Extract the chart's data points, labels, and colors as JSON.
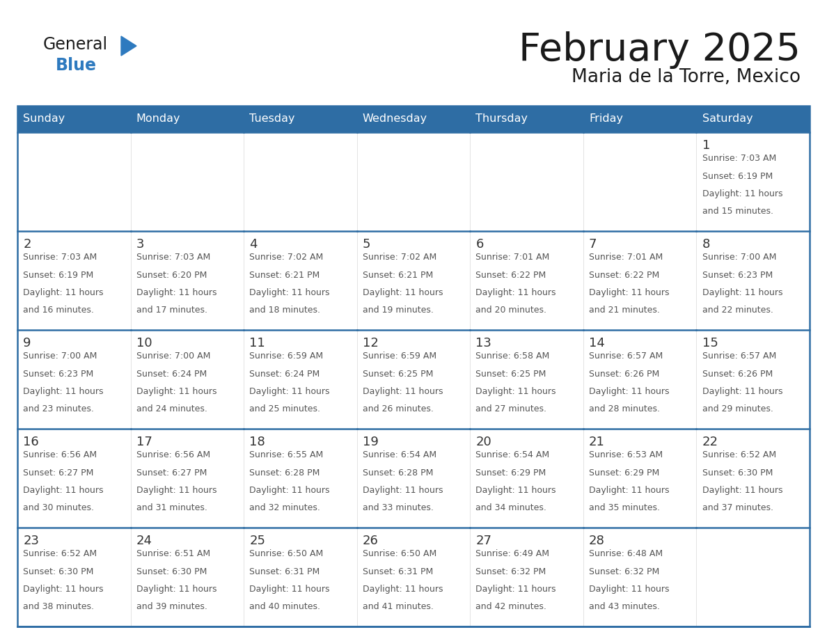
{
  "title": "February 2025",
  "subtitle": "Maria de la Torre, Mexico",
  "days_of_week": [
    "Sunday",
    "Monday",
    "Tuesday",
    "Wednesday",
    "Thursday",
    "Friday",
    "Saturday"
  ],
  "header_bg": "#2E6DA4",
  "header_text": "#FFFFFF",
  "cell_bg": "#FFFFFF",
  "cell_bg_alt": "#F5F5F5",
  "border_color": "#2E6DA4",
  "border_light": "#CCCCCC",
  "day_number_color": "#333333",
  "info_text_color": "#555555",
  "title_color": "#1a1a1a",
  "logo_general_color": "#1a1a1a",
  "logo_blue_color": "#2E7ABF",
  "calendar_data": [
    [
      null,
      null,
      null,
      null,
      null,
      null,
      {
        "day": 1,
        "sunrise": "7:03 AM",
        "sunset": "6:19 PM",
        "daylight": "11 hours and 15 minutes."
      }
    ],
    [
      {
        "day": 2,
        "sunrise": "7:03 AM",
        "sunset": "6:19 PM",
        "daylight": "11 hours and 16 minutes."
      },
      {
        "day": 3,
        "sunrise": "7:03 AM",
        "sunset": "6:20 PM",
        "daylight": "11 hours and 17 minutes."
      },
      {
        "day": 4,
        "sunrise": "7:02 AM",
        "sunset": "6:21 PM",
        "daylight": "11 hours and 18 minutes."
      },
      {
        "day": 5,
        "sunrise": "7:02 AM",
        "sunset": "6:21 PM",
        "daylight": "11 hours and 19 minutes."
      },
      {
        "day": 6,
        "sunrise": "7:01 AM",
        "sunset": "6:22 PM",
        "daylight": "11 hours and 20 minutes."
      },
      {
        "day": 7,
        "sunrise": "7:01 AM",
        "sunset": "6:22 PM",
        "daylight": "11 hours and 21 minutes."
      },
      {
        "day": 8,
        "sunrise": "7:00 AM",
        "sunset": "6:23 PM",
        "daylight": "11 hours and 22 minutes."
      }
    ],
    [
      {
        "day": 9,
        "sunrise": "7:00 AM",
        "sunset": "6:23 PM",
        "daylight": "11 hours and 23 minutes."
      },
      {
        "day": 10,
        "sunrise": "7:00 AM",
        "sunset": "6:24 PM",
        "daylight": "11 hours and 24 minutes."
      },
      {
        "day": 11,
        "sunrise": "6:59 AM",
        "sunset": "6:24 PM",
        "daylight": "11 hours and 25 minutes."
      },
      {
        "day": 12,
        "sunrise": "6:59 AM",
        "sunset": "6:25 PM",
        "daylight": "11 hours and 26 minutes."
      },
      {
        "day": 13,
        "sunrise": "6:58 AM",
        "sunset": "6:25 PM",
        "daylight": "11 hours and 27 minutes."
      },
      {
        "day": 14,
        "sunrise": "6:57 AM",
        "sunset": "6:26 PM",
        "daylight": "11 hours and 28 minutes."
      },
      {
        "day": 15,
        "sunrise": "6:57 AM",
        "sunset": "6:26 PM",
        "daylight": "11 hours and 29 minutes."
      }
    ],
    [
      {
        "day": 16,
        "sunrise": "6:56 AM",
        "sunset": "6:27 PM",
        "daylight": "11 hours and 30 minutes."
      },
      {
        "day": 17,
        "sunrise": "6:56 AM",
        "sunset": "6:27 PM",
        "daylight": "11 hours and 31 minutes."
      },
      {
        "day": 18,
        "sunrise": "6:55 AM",
        "sunset": "6:28 PM",
        "daylight": "11 hours and 32 minutes."
      },
      {
        "day": 19,
        "sunrise": "6:54 AM",
        "sunset": "6:28 PM",
        "daylight": "11 hours and 33 minutes."
      },
      {
        "day": 20,
        "sunrise": "6:54 AM",
        "sunset": "6:29 PM",
        "daylight": "11 hours and 34 minutes."
      },
      {
        "day": 21,
        "sunrise": "6:53 AM",
        "sunset": "6:29 PM",
        "daylight": "11 hours and 35 minutes."
      },
      {
        "day": 22,
        "sunrise": "6:52 AM",
        "sunset": "6:30 PM",
        "daylight": "11 hours and 37 minutes."
      }
    ],
    [
      {
        "day": 23,
        "sunrise": "6:52 AM",
        "sunset": "6:30 PM",
        "daylight": "11 hours and 38 minutes."
      },
      {
        "day": 24,
        "sunrise": "6:51 AM",
        "sunset": "6:30 PM",
        "daylight": "11 hours and 39 minutes."
      },
      {
        "day": 25,
        "sunrise": "6:50 AM",
        "sunset": "6:31 PM",
        "daylight": "11 hours and 40 minutes."
      },
      {
        "day": 26,
        "sunrise": "6:50 AM",
        "sunset": "6:31 PM",
        "daylight": "11 hours and 41 minutes."
      },
      {
        "day": 27,
        "sunrise": "6:49 AM",
        "sunset": "6:32 PM",
        "daylight": "11 hours and 42 minutes."
      },
      {
        "day": 28,
        "sunrise": "6:48 AM",
        "sunset": "6:32 PM",
        "daylight": "11 hours and 43 minutes."
      },
      null
    ]
  ]
}
